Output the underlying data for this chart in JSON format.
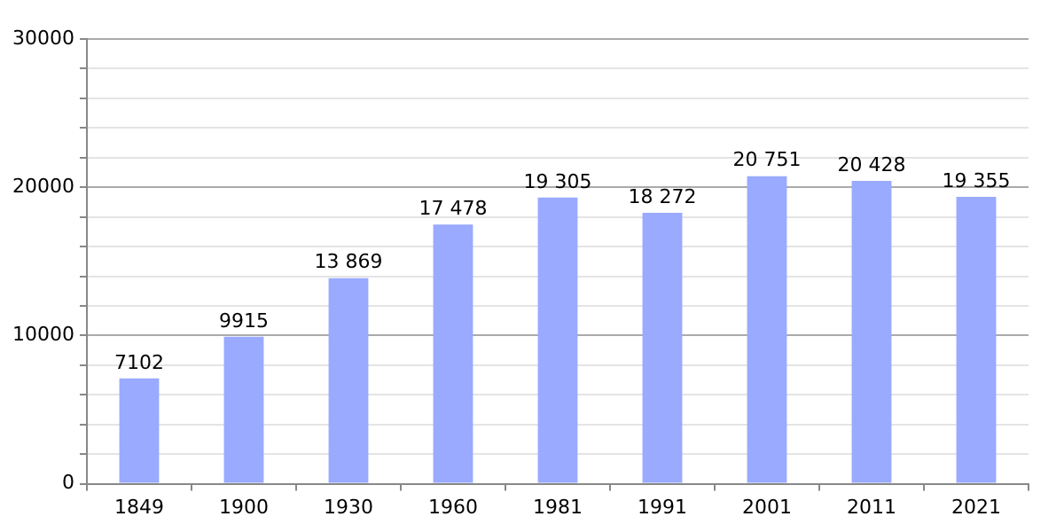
{
  "chart_data": {
    "type": "bar",
    "categories": [
      "1849",
      "1900",
      "1930",
      "1960",
      "1981",
      "1991",
      "2001",
      "2011",
      "2021"
    ],
    "values": [
      7102,
      9915,
      13869,
      17478,
      19305,
      18272,
      20751,
      20428,
      19355
    ],
    "value_labels": [
      "7102",
      "9915",
      "13 869",
      "17 478",
      "19 305",
      "18 272",
      "20 751",
      "20 428",
      "19 355"
    ],
    "color": "#99aaff",
    "ylim": [
      0,
      30000
    ],
    "yticks": [
      0,
      {
        "value": 2000,
        "label": null
      },
      {
        "value": 4000,
        "label": null
      },
      {
        "value": 6000,
        "label": null
      },
      {
        "value": 8000,
        "label": null
      },
      10000,
      {
        "value": 12000,
        "label": null
      },
      {
        "value": 14000,
        "label": null
      },
      {
        "value": 16000,
        "label": null
      },
      {
        "value": 18000,
        "label": null
      },
      20000,
      {
        "value": 22000,
        "label": null
      },
      {
        "value": 24000,
        "label": null
      },
      {
        "value": 26000,
        "label": null
      },
      {
        "value": 28000,
        "label": null
      },
      30000
    ],
    "grid": true
  }
}
